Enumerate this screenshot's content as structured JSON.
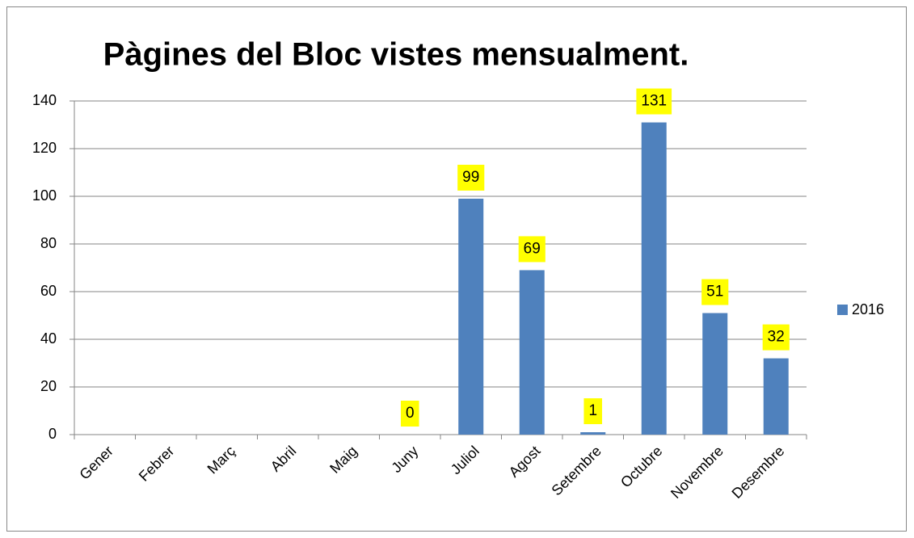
{
  "chart_data": {
    "type": "bar",
    "title": "Pàgines del Bloc vistes mensualment.",
    "categories": [
      "Gener",
      "Febrer",
      "Març",
      "Abril",
      "Maig",
      "Juny",
      "Juliol",
      "Agost",
      "Setembre",
      "Octubre",
      "Novembre",
      "Desembre"
    ],
    "series": [
      {
        "name": "2016",
        "color": "#4f81bd",
        "values": [
          null,
          null,
          null,
          null,
          null,
          0,
          99,
          69,
          1,
          131,
          51,
          32
        ]
      }
    ],
    "ylim": [
      0,
      140
    ],
    "yticks": [
      0,
      20,
      40,
      60,
      80,
      100,
      120,
      140
    ],
    "grid": true,
    "legend": "right",
    "label_background": "#ffff00"
  }
}
